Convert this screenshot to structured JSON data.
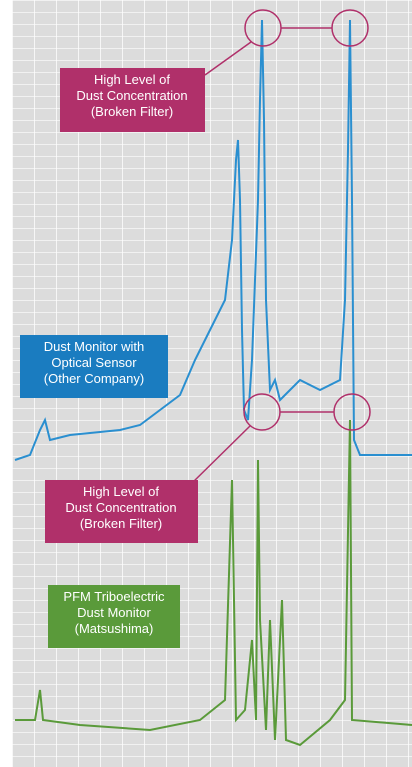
{
  "labels": [
    {
      "lines": [
        "High Level of",
        "Dust Concentration",
        "(Broken Filter)"
      ]
    },
    {
      "lines": [
        "Dust Monitor with",
        "Optical Sensor",
        "(Other Company)"
      ]
    },
    {
      "lines": [
        "High Level of",
        "Dust Concentration",
        "(Broken Filter)"
      ]
    },
    {
      "lines": [
        "PFM Triboelectric",
        "Dust Monitor",
        "(Matsushima)"
      ]
    }
  ]
}
